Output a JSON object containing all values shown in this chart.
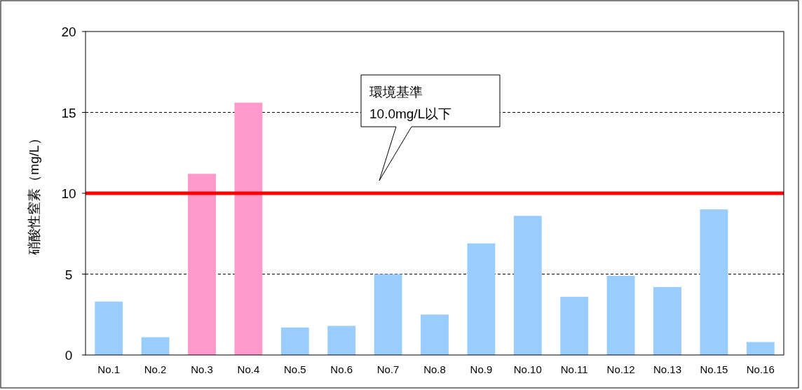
{
  "chart_data": {
    "type": "bar",
    "ylabel": "硝酸性窒素（mg/L）",
    "categories": [
      "No.1",
      "No.2",
      "No.3",
      "No.4",
      "No.5",
      "No.6",
      "No.7",
      "No.8",
      "No.9",
      "No.10",
      "No.11",
      "No.12",
      "No.13",
      "No.15",
      "No.16"
    ],
    "values": [
      3.3,
      1.1,
      11.2,
      15.6,
      1.7,
      1.8,
      5.0,
      2.5,
      6.9,
      8.6,
      3.6,
      4.9,
      4.2,
      9.0,
      0.8
    ],
    "colors": [
      "#99ccff",
      "#99ccff",
      "#ff99cc",
      "#ff99cc",
      "#99ccff",
      "#99ccff",
      "#99ccff",
      "#99ccff",
      "#99ccff",
      "#99ccff",
      "#99ccff",
      "#99ccff",
      "#99ccff",
      "#99ccff",
      "#99ccff"
    ],
    "ylim": [
      0,
      20
    ],
    "yticks": [
      0,
      5,
      10,
      15,
      20
    ],
    "grid": "y",
    "annotations": [
      "環境基準\n10.0mg/L以下"
    ],
    "ref_lines": [
      {
        "axis": "y",
        "value": 10,
        "color": "#ff0000",
        "line_style": "solid"
      }
    ]
  }
}
